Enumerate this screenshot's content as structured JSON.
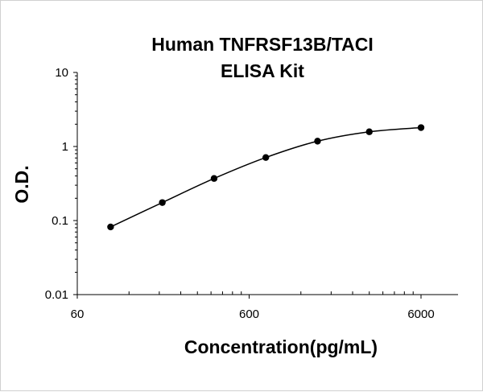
{
  "chart_data": {
    "type": "line",
    "title": [
      "Human TNFRSF13B/TACI",
      "ELISA Kit"
    ],
    "xlabel": "Concentration(pg/mL)",
    "ylabel": "O.D.",
    "x_scale": "log",
    "y_scale": "log",
    "xlim": [
      60,
      12000
    ],
    "ylim": [
      0.01,
      10
    ],
    "x_ticks": [
      {
        "value": 60,
        "label": "60"
      },
      {
        "value": 600,
        "label": "600"
      },
      {
        "value": 6000,
        "label": "6000"
      }
    ],
    "y_ticks": [
      {
        "value": 10,
        "label": "10"
      },
      {
        "value": 1,
        "label": "1"
      },
      {
        "value": 0.1,
        "label": "0.1"
      },
      {
        "value": 0.01,
        "label": "0.01"
      }
    ],
    "grid": false,
    "legend": "none",
    "series": [
      {
        "x": [
          93.75,
          187.5,
          375,
          750,
          1500,
          3000,
          6000
        ],
        "y": [
          0.082,
          0.175,
          0.37,
          0.71,
          1.18,
          1.58,
          1.8
        ]
      }
    ]
  }
}
